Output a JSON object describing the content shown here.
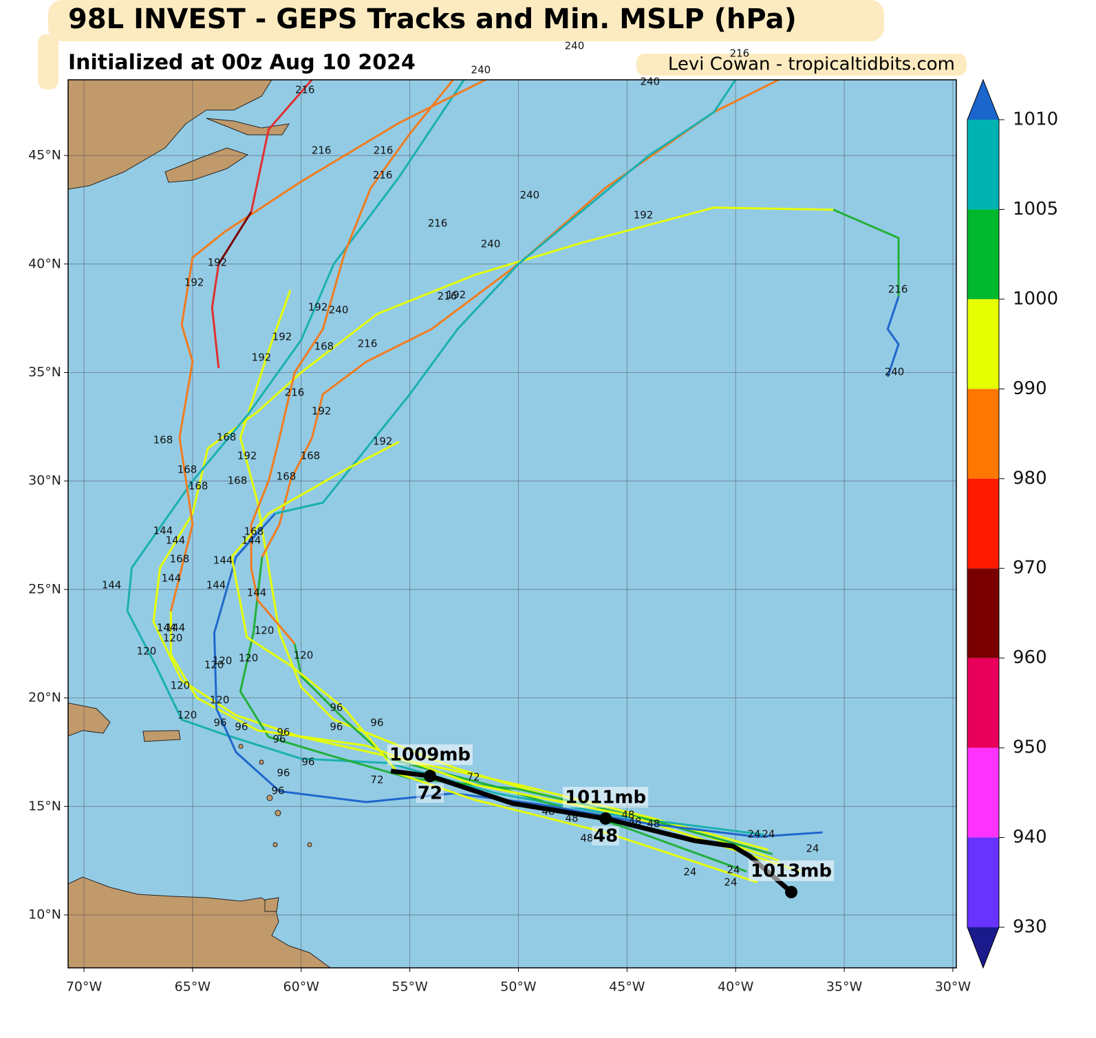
{
  "map": {
    "title": "98L INVEST - GEPS Tracks and Min. MSLP (hPa)",
    "subtitle": "Initialized at 00z Aug 10 2024",
    "credit": "Levi Cowan - tropicaltidbits.com",
    "xlim": [
      -70.73,
      -29.84
    ],
    "ylim": [
      7.56,
      48.49
    ],
    "xticks": [
      {
        "value": -70,
        "label": "70°W"
      },
      {
        "value": -65,
        "label": "65°W"
      },
      {
        "value": -60,
        "label": "60°W"
      },
      {
        "value": -55,
        "label": "55°W"
      },
      {
        "value": -50,
        "label": "50°W"
      },
      {
        "value": -45,
        "label": "45°W"
      },
      {
        "value": -40,
        "label": "40°W"
      },
      {
        "value": -35,
        "label": "35°W"
      },
      {
        "value": -30,
        "label": "30°W"
      }
    ],
    "yticks": [
      {
        "value": 10,
        "label": "10°N"
      },
      {
        "value": 15,
        "label": "15°N"
      },
      {
        "value": 20,
        "label": "20°N"
      },
      {
        "value": 25,
        "label": "25°N"
      },
      {
        "value": 30,
        "label": "30°N"
      },
      {
        "value": 35,
        "label": "35°N"
      },
      {
        "value": 40,
        "label": "40°N"
      },
      {
        "value": 45,
        "label": "45°N"
      }
    ],
    "grid": true,
    "ocean_color": "#93cbe4",
    "land_color": "#c19a6b",
    "tracks": [
      {
        "color": "#e6ff00",
        "lon": [
          -38,
          -43,
          -48,
          -53,
          -56,
          -58.5,
          -60,
          -61,
          -61.5,
          -62,
          -62.8,
          -61.5,
          -60.5
        ],
        "lat": [
          12.5,
          14.2,
          15.3,
          16.8,
          18,
          19,
          20.5,
          23,
          26,
          29,
          32,
          36,
          38.8
        ]
      },
      {
        "color": "#e6ff00",
        "lon": [
          -38.5,
          -44,
          -50,
          -55.5,
          -60,
          -63,
          -65.5,
          -66.8,
          -66.5,
          -65,
          -64.3,
          -62,
          -60,
          -56.5,
          -52,
          -47,
          -41,
          -35.5
        ],
        "lat": [
          13,
          14.5,
          16,
          17.2,
          18.2,
          19.2,
          20.8,
          23.5,
          26,
          28.5,
          31.5,
          33.2,
          35,
          37.7,
          39.5,
          41,
          42.6,
          42.5
        ]
      },
      {
        "color": "#22b03a",
        "lon": [
          -35.5,
          -32.5,
          -32.5
        ],
        "lat": [
          42.5,
          41.2,
          38.5
        ]
      },
      {
        "color": "#1f66cc",
        "lon": [
          -32.5,
          -33,
          -32.5,
          -33
        ],
        "lat": [
          38.5,
          37,
          36.3,
          34.8
        ]
      },
      {
        "color": "#1ab0b0",
        "lon": [
          -38.7,
          -45,
          -51,
          -56,
          -60,
          -63.5,
          -65.5,
          -66.7,
          -68,
          -67.8,
          -66.4,
          -65,
          -62.5,
          -60,
          -58.5,
          -55.5,
          -53.5,
          -52.5
        ],
        "lat": [
          13.7,
          14.5,
          15.6,
          17,
          17.2,
          18.3,
          19,
          21.5,
          24,
          26,
          28,
          30,
          33,
          36.5,
          40,
          44,
          47,
          48.5
        ]
      },
      {
        "color": "#22b03a",
        "lon": [
          -38.3,
          -44,
          -50,
          -55,
          -58.5,
          -61.5,
          -62.8,
          -62.2,
          -61.8
        ],
        "lat": [
          12.8,
          14.4,
          15.8,
          16.3,
          17.3,
          18.2,
          20.3,
          23,
          26.5
        ]
      },
      {
        "color": "#f07c20",
        "lon": [
          -61.8,
          -61,
          -60.5,
          -59.5,
          -59,
          -57,
          -54,
          -50,
          -46,
          -41,
          -38
        ],
        "lat": [
          26.5,
          28,
          30,
          32,
          34,
          35.5,
          37,
          40,
          43.5,
          47,
          48.5
        ]
      },
      {
        "color": "#22b03a",
        "lon": [
          -39.5,
          -45,
          -51,
          -56,
          -58,
          -60,
          -60.3
        ],
        "lat": [
          12,
          14,
          15.9,
          17.2,
          19,
          21,
          22.5
        ]
      },
      {
        "color": "#f07c20",
        "lon": [
          -60.3,
          -62,
          -62.3,
          -62.3,
          -61.5,
          -61,
          -60.3,
          -59,
          -58,
          -56.8,
          -55,
          -53
        ],
        "lat": [
          22.5,
          24.5,
          26,
          28,
          30,
          32,
          35,
          37,
          40.5,
          43.5,
          46,
          48.5
        ]
      },
      {
        "color": "#e6ff00",
        "lon": [
          -37,
          -45,
          -52,
          -57,
          -62,
          -64.8,
          -66,
          -66
        ],
        "lat": [
          12,
          14.6,
          16,
          17.8,
          18.5,
          20,
          22,
          24
        ]
      },
      {
        "color": "#f07c20",
        "lon": [
          -66,
          -65,
          -65.6,
          -65,
          -65.5,
          -65,
          -63.5,
          -60,
          -55.5,
          -51.5
        ],
        "lat": [
          24,
          28,
          32,
          35.5,
          37.2,
          40.3,
          41.5,
          43.8,
          46.5,
          48.5
        ]
      },
      {
        "color": "#e03030",
        "lon": [
          -63.8,
          -64.1,
          -63.8
        ],
        "lat": [
          35.2,
          38,
          40
        ]
      },
      {
        "color": "#7a0000",
        "lon": [
          -63.8,
          -62.3
        ],
        "lat": [
          40,
          42.4
        ]
      },
      {
        "color": "#e03030",
        "lon": [
          -62.3,
          -61.5,
          -59.5
        ],
        "lat": [
          42.4,
          46.2,
          48.5
        ]
      },
      {
        "color": "#1f66cc",
        "lon": [
          -36,
          -39,
          -44,
          -49,
          -53,
          -57,
          -61,
          -63,
          -63.9,
          -64,
          -63,
          -61.2
        ],
        "lat": [
          13.8,
          13.6,
          14.2,
          15.1,
          15.6,
          15.2,
          15.7,
          17.5,
          19.5,
          23,
          26.5,
          28.5
        ]
      },
      {
        "color": "#1ab0b0",
        "lon": [
          -61.2,
          -59,
          -57,
          -55,
          -52.8,
          -50,
          -47,
          -44,
          -41,
          -40
        ],
        "lat": [
          28.5,
          29,
          31.5,
          34,
          37,
          40,
          42.5,
          45,
          47,
          48.5
        ]
      },
      {
        "color": "#e6ff00",
        "lon": [
          -39,
          -46,
          -52,
          -55.5,
          -58,
          -60.5,
          -62.5,
          -63.2,
          -61.5,
          -58,
          -55.5
        ],
        "lat": [
          11.5,
          13.8,
          15.3,
          16.5,
          19.5,
          21.5,
          22.8,
          26.5,
          28.5,
          30.5,
          31.8
        ]
      }
    ],
    "hour_labels": [
      {
        "text": 216,
        "lon": -59.83,
        "lat": 48.01
      },
      {
        "text": 216,
        "lon": -59.07,
        "lat": 45.23
      },
      {
        "text": 216,
        "lon": -56.22,
        "lat": 45.23
      },
      {
        "text": 216,
        "lon": -56.25,
        "lat": 44.08
      },
      {
        "text": 240,
        "lon": -43.94,
        "lat": 48.4
      },
      {
        "text": 240,
        "lon": -49.48,
        "lat": 43.16
      },
      {
        "text": 216,
        "lon": -53.72,
        "lat": 41.86
      },
      {
        "text": 240,
        "lon": -51.28,
        "lat": 40.91
      },
      {
        "text": 192,
        "lon": -44.25,
        "lat": 42.24
      },
      {
        "text": 216,
        "lon": -32.53,
        "lat": 38.82
      },
      {
        "text": 240,
        "lon": -32.69,
        "lat": 35.02
      },
      {
        "text": 192,
        "lon": -63.86,
        "lat": 40.06
      },
      {
        "text": 192,
        "lon": -64.93,
        "lat": 39.14
      },
      {
        "text": 192,
        "lon": -59.23,
        "lat": 38.0
      },
      {
        "text": 240,
        "lon": -58.28,
        "lat": 37.87
      },
      {
        "text": 216,
        "lon": -53.28,
        "lat": 38.5
      },
      {
        "text": 192,
        "lon": -52.87,
        "lat": 38.57
      },
      {
        "text": 192,
        "lon": -60.88,
        "lat": 36.63
      },
      {
        "text": 168,
        "lon": -58.95,
        "lat": 36.19
      },
      {
        "text": 216,
        "lon": -56.95,
        "lat": 36.32
      },
      {
        "text": 192,
        "lon": -61.83,
        "lat": 35.68
      },
      {
        "text": 216,
        "lon": -60.31,
        "lat": 34.06
      },
      {
        "text": 192,
        "lon": -59.07,
        "lat": 33.21
      },
      {
        "text": 192,
        "lon": -56.25,
        "lat": 31.81
      },
      {
        "text": 168,
        "lon": -66.36,
        "lat": 31.88
      },
      {
        "text": 168,
        "lon": -63.44,
        "lat": 32.0
      },
      {
        "text": 192,
        "lon": -62.49,
        "lat": 31.15
      },
      {
        "text": 168,
        "lon": -59.58,
        "lat": 31.15
      },
      {
        "text": 168,
        "lon": -65.25,
        "lat": 30.51
      },
      {
        "text": 168,
        "lon": -64.74,
        "lat": 29.75
      },
      {
        "text": 168,
        "lon": -62.94,
        "lat": 30.01
      },
      {
        "text": 168,
        "lon": -60.69,
        "lat": 30.2
      },
      {
        "text": 144,
        "lon": -66.36,
        "lat": 27.69
      },
      {
        "text": 144,
        "lon": -65.79,
        "lat": 27.25
      },
      {
        "text": 168,
        "lon": -62.18,
        "lat": 27.66
      },
      {
        "text": 144,
        "lon": -62.3,
        "lat": 27.25
      },
      {
        "text": 168,
        "lon": -65.6,
        "lat": 26.39
      },
      {
        "text": 144,
        "lon": -63.6,
        "lat": 26.33
      },
      {
        "text": 144,
        "lon": -68.73,
        "lat": 25.19
      },
      {
        "text": 144,
        "lon": -65.98,
        "lat": 25.5
      },
      {
        "text": 144,
        "lon": -63.92,
        "lat": 25.19
      },
      {
        "text": 144,
        "lon": -62.05,
        "lat": 24.84
      },
      {
        "text": 144,
        "lon": -66.2,
        "lat": 23.22
      },
      {
        "text": 144,
        "lon": -65.79,
        "lat": 23.22
      },
      {
        "text": 120,
        "lon": -65.91,
        "lat": 22.75
      },
      {
        "text": 120,
        "lon": -61.7,
        "lat": 23.09
      },
      {
        "text": 120,
        "lon": -59.9,
        "lat": 21.95
      },
      {
        "text": 120,
        "lon": -67.12,
        "lat": 22.14
      },
      {
        "text": 120,
        "lon": -64.01,
        "lat": 21.51
      },
      {
        "text": 120,
        "lon": -63.63,
        "lat": 21.7
      },
      {
        "text": 120,
        "lon": -62.43,
        "lat": 21.83
      },
      {
        "text": 120,
        "lon": -65.57,
        "lat": 20.56
      },
      {
        "text": 120,
        "lon": -63.76,
        "lat": 19.89
      },
      {
        "text": 120,
        "lon": -65.25,
        "lat": 19.19
      },
      {
        "text": 96,
        "lon": -58.38,
        "lat": 19.54
      },
      {
        "text": 96,
        "lon": -56.51,
        "lat": 18.85
      },
      {
        "text": 96,
        "lon": -58.38,
        "lat": 18.66
      },
      {
        "text": 96,
        "lon": -63.73,
        "lat": 18.85
      },
      {
        "text": 96,
        "lon": -62.75,
        "lat": 18.66
      },
      {
        "text": 96,
        "lon": -60.82,
        "lat": 18.4
      },
      {
        "text": 96,
        "lon": -61.01,
        "lat": 18.09
      },
      {
        "text": 96,
        "lon": -59.68,
        "lat": 17.04
      },
      {
        "text": 96,
        "lon": -60.82,
        "lat": 16.53
      },
      {
        "text": 96,
        "lon": -61.07,
        "lat": 15.71
      },
      {
        "text": 72,
        "lon": -56.51,
        "lat": 16.21
      },
      {
        "text": 72,
        "lon": -52.07,
        "lat": 16.34
      },
      {
        "text": 48,
        "lon": -48.62,
        "lat": 14.76
      },
      {
        "text": 48,
        "lon": -47.54,
        "lat": 14.44
      },
      {
        "text": 48,
        "lon": -46.85,
        "lat": 13.52
      },
      {
        "text": 48,
        "lon": -44.95,
        "lat": 14.6
      },
      {
        "text": 48,
        "lon": -44.63,
        "lat": 14.28
      },
      {
        "text": 48,
        "lon": -43.78,
        "lat": 14.19
      },
      {
        "text": 24,
        "lon": -39.15,
        "lat": 13.71
      },
      {
        "text": 24,
        "lon": -38.49,
        "lat": 13.71
      },
      {
        "text": 24,
        "lon": -42.1,
        "lat": 11.97
      },
      {
        "text": 24,
        "lon": -40.1,
        "lat": 12.06
      },
      {
        "text": 24,
        "lon": -40.23,
        "lat": 11.49
      },
      {
        "text": 24,
        "lon": -36.46,
        "lat": 13.04
      },
      {
        "text": 240,
        "lon": -47.42,
        "lat": 50.05
      },
      {
        "text": 216,
        "lon": -39.82,
        "lat": 49.7
      },
      {
        "text": 240,
        "lon": -51.73,
        "lat": 48.94
      }
    ],
    "mean_track": {
      "color": "#000000",
      "lon": [
        -55.87,
        -54.07,
        -50.27,
        -45.99,
        -41.88,
        -40.13,
        -39.34,
        -37.44
      ],
      "lat": [
        16.63,
        16.4,
        15.14,
        14.44,
        13.42,
        13.17,
        12.7,
        11.05
      ],
      "points": [
        {
          "lon": -54.07,
          "lat": 16.4,
          "label": "1009mb",
          "hour": 72
        },
        {
          "lon": -45.99,
          "lat": 14.44,
          "label": "1011mb",
          "hour": 48
        },
        {
          "lon": -37.44,
          "lat": 11.05,
          "label": "1013mb"
        }
      ]
    },
    "colorbar": {
      "levels": [
        930,
        940,
        950,
        960,
        970,
        980,
        990,
        1000,
        1005,
        1010
      ],
      "colors": [
        "#6633ff",
        "#ff33ff",
        "#e8005a",
        "#7a0000",
        "#ff1a00",
        "#ff7700",
        "#e6ff00",
        "#00b82e",
        "#00b3b3"
      ],
      "under_color": "#1a1a8c",
      "over_color": "#1a66cc"
    }
  }
}
